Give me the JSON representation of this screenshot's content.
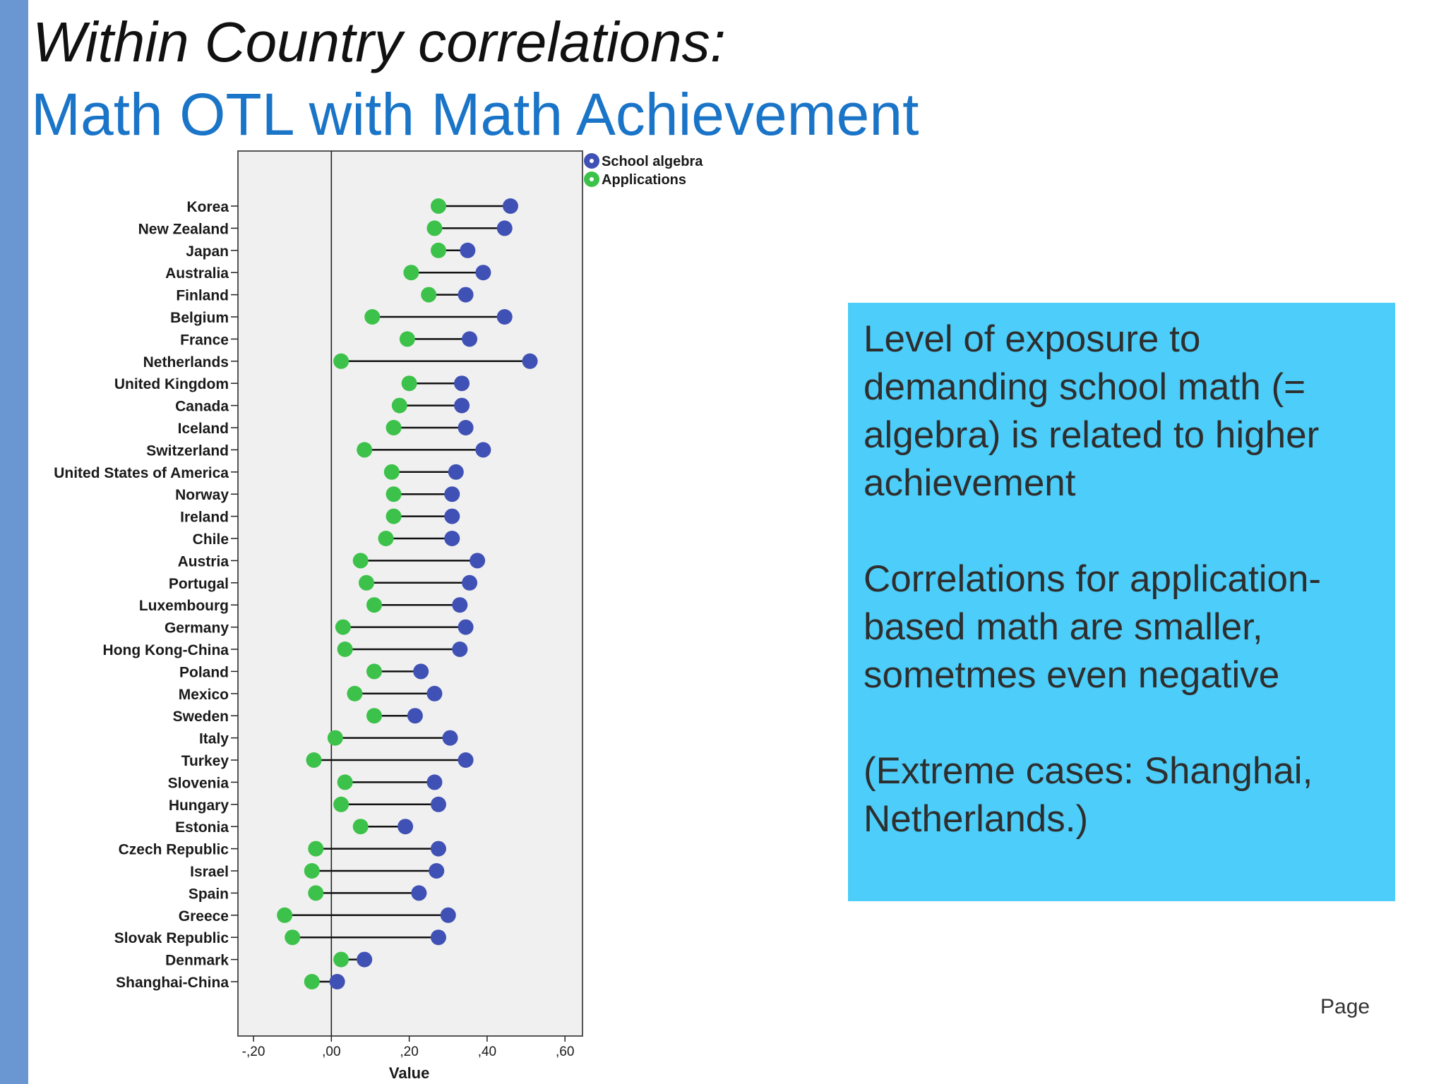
{
  "slide": {
    "title": "Within Country correlations:",
    "subtitle": "Math OTL with Math Achievement",
    "callout": [
      "Level of exposure to demanding school math (= algebra) is related to higher achievement",
      "Correlations for application-based math are smaller, sometmes even negative",
      "(Extreme  cases: Shanghai, Netherlands.)"
    ],
    "page_label": "Page"
  },
  "chart_data": {
    "type": "scatter",
    "orientation": "horizontal dot plot",
    "xlabel": "Value",
    "xlim": [
      -0.24,
      0.645
    ],
    "xticks": [
      -0.2,
      0.0,
      0.2,
      0.4,
      0.6
    ],
    "xtick_labels": [
      ",20",
      ",00",
      ",20",
      ",40",
      ",60"
    ],
    "xtick_prefix_first": "-",
    "reference_line_x": 0.0,
    "legend_position": "top-right",
    "colors": {
      "School algebra": "#3f51b5",
      "Applications": "#3cc24a",
      "connector": "#111111",
      "plot_background": "#f1f0f0"
    },
    "categories": [
      "Korea",
      "New Zealand",
      "Japan",
      "Australia",
      "Finland",
      "Belgium",
      "France",
      "Netherlands",
      "United Kingdom",
      "Canada",
      "Iceland",
      "Switzerland",
      "United States of America",
      "Norway",
      "Ireland",
      "Chile",
      "Austria",
      "Portugal",
      "Luxembourg",
      "Germany",
      "Hong Kong-China",
      "Poland",
      "Mexico",
      "Sweden",
      "Italy",
      "Turkey",
      "Slovenia",
      "Hungary",
      "Estonia",
      "Czech Republic",
      "Israel",
      "Spain",
      "Greece",
      "Slovak Republic",
      "Denmark",
      "Shanghai-China"
    ],
    "series": [
      {
        "name": "School algebra",
        "values": [
          0.46,
          0.445,
          0.35,
          0.39,
          0.345,
          0.445,
          0.355,
          0.51,
          0.335,
          0.335,
          0.345,
          0.39,
          0.32,
          0.31,
          0.31,
          0.31,
          0.375,
          0.355,
          0.33,
          0.345,
          0.33,
          0.23,
          0.265,
          0.215,
          0.305,
          0.345,
          0.265,
          0.275,
          0.19,
          0.275,
          0.27,
          0.225,
          0.3,
          0.275,
          0.085,
          0.015
        ]
      },
      {
        "name": "Applications",
        "values": [
          0.275,
          0.265,
          0.275,
          0.205,
          0.25,
          0.105,
          0.195,
          0.025,
          0.2,
          0.175,
          0.16,
          0.085,
          0.155,
          0.16,
          0.16,
          0.14,
          0.075,
          0.09,
          0.11,
          0.03,
          0.035,
          0.11,
          0.06,
          0.11,
          0.01,
          -0.045,
          0.035,
          0.025,
          0.075,
          -0.04,
          -0.05,
          -0.04,
          -0.12,
          -0.1,
          0.025,
          -0.05
        ]
      }
    ]
  }
}
